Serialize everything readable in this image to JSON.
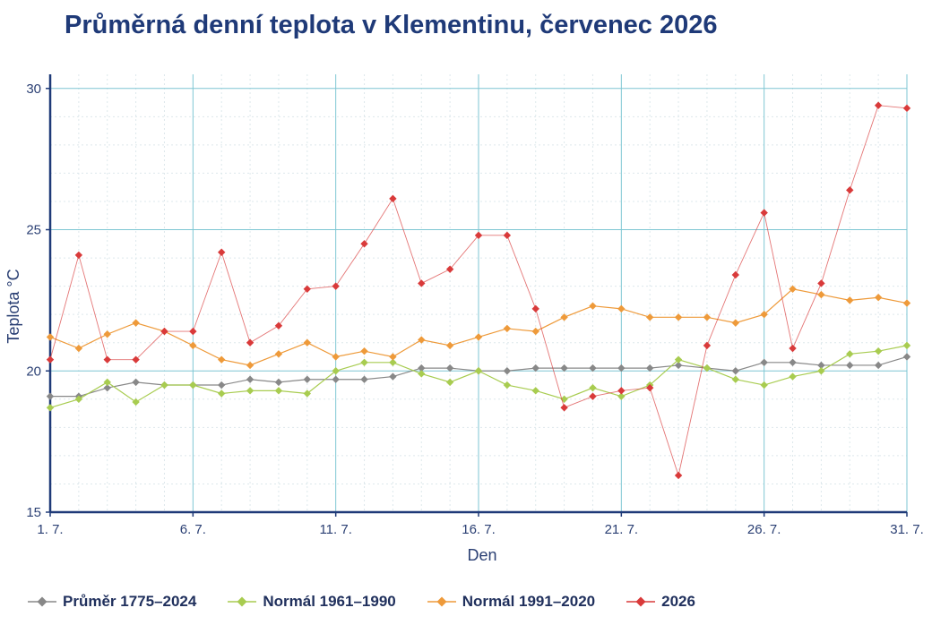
{
  "colors": {
    "title": "#1f3a78",
    "axis": "#1f3a78",
    "grid_major": "#7ec6d3",
    "grid_minor": "#dde8ec",
    "series": [
      "#888888",
      "#a8cc50",
      "#ee9a3a",
      "#d93a3a"
    ]
  },
  "chart_data": {
    "type": "line",
    "title": "Průměrná denní teplota v Klementinu, červenec 2026",
    "xlabel": "Den",
    "ylabel": "Teplota  °C",
    "ylim": [
      15,
      30.5
    ],
    "xlim": [
      1,
      31
    ],
    "x": [
      1,
      2,
      3,
      4,
      5,
      6,
      7,
      8,
      9,
      10,
      11,
      12,
      13,
      14,
      15,
      16,
      17,
      18,
      19,
      20,
      21,
      22,
      23,
      24,
      25,
      26,
      27,
      28,
      29,
      30,
      31
    ],
    "x_ticks": [
      1,
      6,
      11,
      16,
      21,
      26,
      31
    ],
    "x_tick_labels": [
      "1. 7.",
      "6. 7.",
      "11. 7.",
      "16. 7.",
      "21. 7.",
      "26. 7.",
      "31. 7."
    ],
    "y_ticks": [
      15,
      20,
      25,
      30
    ],
    "y_tick_labels": [
      "15",
      "20",
      "25",
      "30"
    ],
    "grid": true,
    "legend_position": "bottom",
    "series": [
      {
        "name": "Průměr 1775–2024",
        "marker": "diamond",
        "values": [
          19.1,
          19.1,
          19.4,
          19.6,
          19.5,
          19.5,
          19.5,
          19.7,
          19.6,
          19.7,
          19.7,
          19.7,
          19.8,
          20.1,
          20.1,
          20.0,
          20.0,
          20.1,
          20.1,
          20.1,
          20.1,
          20.1,
          20.2,
          20.1,
          20.0,
          20.3,
          20.3,
          20.2,
          20.2,
          20.2,
          20.5
        ]
      },
      {
        "name": "Normál 1961–1990",
        "marker": "diamond",
        "values": [
          18.7,
          19.0,
          19.6,
          18.9,
          19.5,
          19.5,
          19.2,
          19.3,
          19.3,
          19.2,
          20.0,
          20.3,
          20.3,
          19.9,
          19.6,
          20.0,
          19.5,
          19.3,
          19.0,
          19.4,
          19.1,
          19.5,
          20.4,
          20.1,
          19.7,
          19.5,
          19.8,
          20.0,
          20.6,
          20.7,
          20.9
        ]
      },
      {
        "name": "Normál 1991–2020",
        "marker": "diamond",
        "values": [
          21.2,
          20.8,
          21.3,
          21.7,
          21.4,
          20.9,
          20.4,
          20.2,
          20.6,
          21.0,
          20.5,
          20.7,
          20.5,
          21.1,
          20.9,
          21.2,
          21.5,
          21.4,
          21.9,
          22.3,
          22.2,
          21.9,
          21.9,
          21.9,
          21.7,
          22.0,
          22.9,
          22.7,
          22.5,
          22.6,
          22.4
        ]
      },
      {
        "name": "2026",
        "marker": "diamond",
        "values": [
          20.4,
          24.1,
          20.4,
          20.4,
          21.4,
          21.4,
          24.2,
          21.0,
          21.6,
          22.9,
          23.0,
          24.5,
          26.1,
          23.1,
          23.6,
          24.8,
          24.8,
          22.2,
          18.7,
          19.1,
          19.3,
          19.4,
          16.3,
          20.9,
          23.4,
          25.6,
          20.8,
          23.1,
          26.4,
          29.4,
          29.3
        ]
      }
    ]
  }
}
